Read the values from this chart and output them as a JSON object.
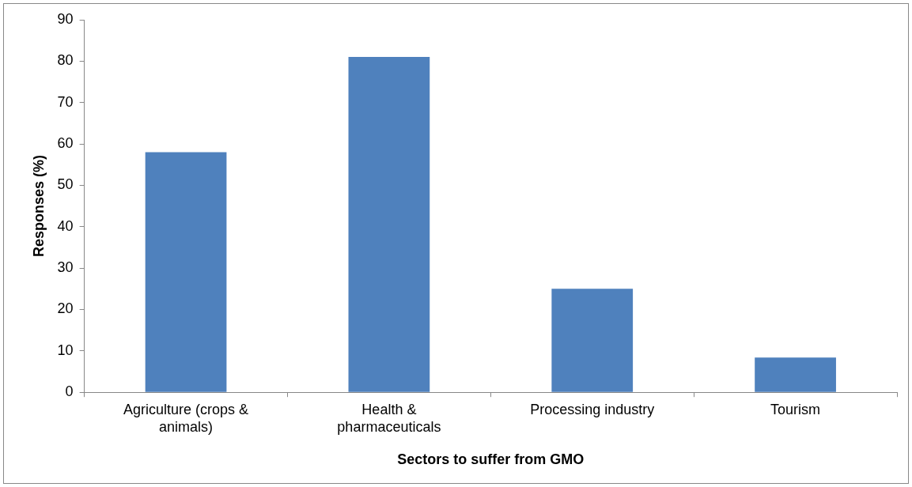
{
  "chart_data": {
    "type": "bar",
    "xlabel": "Sectors to suffer from GMO",
    "ylabel": "Responses (%)",
    "categories": [
      "Agriculture (crops & animals)",
      "Health & pharmaceuticals",
      "Processing industry",
      "Tourism"
    ],
    "values": [
      58,
      81,
      25,
      8.4
    ],
    "color": "#4f81bd",
    "ylim": [
      0,
      90
    ],
    "yticks": [
      0,
      10,
      20,
      30,
      40,
      50,
      60,
      70,
      80,
      90
    ],
    "grid": false,
    "legend": false
  }
}
